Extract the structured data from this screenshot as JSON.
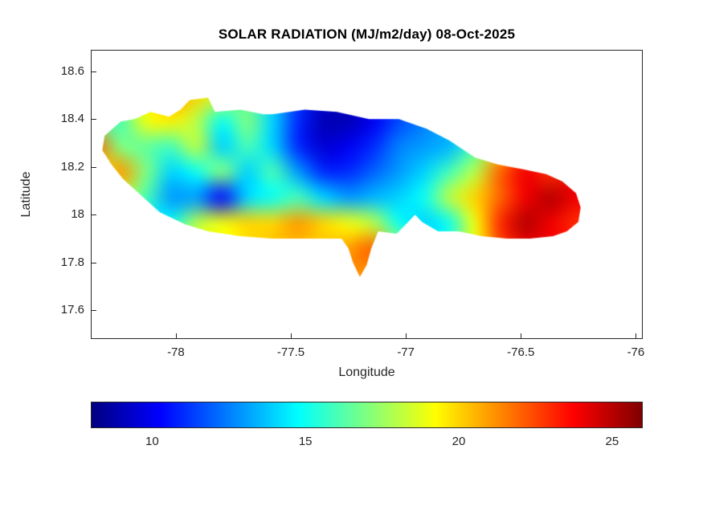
{
  "chart_data": {
    "type": "heatmap",
    "title": "SOLAR RADIATION (MJ/m2/day) 08-Oct-2025",
    "xlabel": "Longitude",
    "ylabel": "Latitude",
    "units": "MJ/m2/day",
    "date": "08-Oct-2025",
    "colormap": "jet",
    "grid_on": false,
    "xlim": [
      -78.37,
      -75.97
    ],
    "ylim": [
      17.48,
      18.69
    ],
    "x_ticks": [
      {
        "v": -78,
        "label": "-78"
      },
      {
        "v": -77.5,
        "label": "-77.5"
      },
      {
        "v": -77,
        "label": "-77"
      },
      {
        "v": -76.5,
        "label": "-76.5"
      },
      {
        "v": -76,
        "label": "-76"
      }
    ],
    "y_ticks": [
      {
        "v": 17.6,
        "label": "17.6"
      },
      {
        "v": 17.8,
        "label": "17.8"
      },
      {
        "v": 18,
        "label": "18"
      },
      {
        "v": 18.2,
        "label": "18.2"
      },
      {
        "v": 18.4,
        "label": "18.4"
      },
      {
        "v": 18.6,
        "label": "18.6"
      }
    ],
    "colorbar": {
      "orientation": "horizontal",
      "vmin": 8,
      "vmax": 26,
      "ticks": [
        {
          "v": 10,
          "label": "10"
        },
        {
          "v": 15,
          "label": "15"
        },
        {
          "v": 20,
          "label": "20"
        },
        {
          "v": 25,
          "label": "25"
        }
      ]
    },
    "grid": {
      "lon_centers": [
        -78.35,
        -78.24,
        -78.13,
        -78.02,
        -77.91,
        -77.8,
        -77.69,
        -77.58,
        -77.47,
        -77.36,
        -77.25,
        -77.14,
        -77.03,
        -76.92,
        -76.81,
        -76.7,
        -76.59,
        -76.48,
        -76.37,
        -76.26
      ],
      "lat_centers": [
        18.5,
        18.39,
        18.28,
        18.17,
        18.06,
        17.95,
        17.85,
        17.75
      ],
      "values": [
        [
          null,
          null,
          null,
          21,
          20,
          18.5,
          null,
          null,
          null,
          null,
          null,
          null,
          null,
          null,
          null,
          null,
          null,
          null,
          null,
          null
        ],
        [
          17,
          16,
          19,
          19.5,
          18,
          15,
          17,
          14,
          11,
          9,
          9,
          10,
          11.5,
          12.5,
          13.5,
          null,
          null,
          null,
          null,
          null
        ],
        [
          22,
          17,
          16.5,
          16,
          18,
          14,
          16,
          14,
          11,
          9.5,
          10,
          11,
          12.5,
          13,
          13.5,
          16,
          null,
          null,
          null,
          null
        ],
        [
          19,
          21,
          17,
          14,
          15,
          17,
          14,
          16,
          13,
          11,
          11,
          12,
          13,
          14,
          16,
          18,
          22,
          24,
          23,
          null
        ],
        [
          null,
          null,
          16,
          13,
          13,
          10.5,
          14,
          15,
          16,
          14,
          13,
          13.5,
          14,
          15,
          18,
          20,
          22,
          24,
          25,
          24
        ],
        [
          null,
          null,
          null,
          null,
          18,
          19,
          20,
          20,
          21,
          20,
          19,
          18,
          15,
          14,
          15,
          19,
          23,
          25,
          24,
          23
        ],
        [
          null,
          null,
          null,
          null,
          null,
          null,
          null,
          null,
          null,
          null,
          21,
          22,
          null,
          null,
          null,
          null,
          null,
          null,
          null,
          null
        ],
        [
          null,
          null,
          null,
          null,
          null,
          null,
          null,
          null,
          null,
          null,
          null,
          21,
          null,
          null,
          null,
          null,
          null,
          null,
          null,
          null
        ]
      ]
    },
    "coastline_outline_lonlat": [
      [
        -78.32,
        18.27
      ],
      [
        -78.31,
        18.33
      ],
      [
        -78.24,
        18.39
      ],
      [
        -78.18,
        18.4
      ],
      [
        -78.11,
        18.43
      ],
      [
        -78.03,
        18.41
      ],
      [
        -77.98,
        18.44
      ],
      [
        -77.94,
        18.48
      ],
      [
        -77.86,
        18.49
      ],
      [
        -77.83,
        18.43
      ],
      [
        -77.72,
        18.44
      ],
      [
        -77.62,
        18.42
      ],
      [
        -77.58,
        18.42
      ],
      [
        -77.44,
        18.44
      ],
      [
        -77.3,
        18.43
      ],
      [
        -77.16,
        18.4
      ],
      [
        -77.03,
        18.4
      ],
      [
        -76.91,
        18.36
      ],
      [
        -76.81,
        18.31
      ],
      [
        -76.7,
        18.24
      ],
      [
        -76.6,
        18.21
      ],
      [
        -76.49,
        18.19
      ],
      [
        -76.39,
        18.17
      ],
      [
        -76.32,
        18.14
      ],
      [
        -76.26,
        18.09
      ],
      [
        -76.24,
        18.03
      ],
      [
        -76.25,
        17.97
      ],
      [
        -76.3,
        17.93
      ],
      [
        -76.36,
        17.91
      ],
      [
        -76.46,
        17.9
      ],
      [
        -76.56,
        17.9
      ],
      [
        -76.67,
        17.91
      ],
      [
        -76.77,
        17.93
      ],
      [
        -76.86,
        17.93
      ],
      [
        -76.93,
        17.97
      ],
      [
        -76.96,
        18.0
      ],
      [
        -77.0,
        17.96
      ],
      [
        -77.04,
        17.92
      ],
      [
        -77.12,
        17.93
      ],
      [
        -77.15,
        17.86
      ],
      [
        -77.17,
        17.79
      ],
      [
        -77.2,
        17.74
      ],
      [
        -77.23,
        17.8
      ],
      [
        -77.25,
        17.86
      ],
      [
        -77.28,
        17.9
      ],
      [
        -77.33,
        17.9
      ],
      [
        -77.44,
        17.9
      ],
      [
        -77.58,
        17.9
      ],
      [
        -77.72,
        17.91
      ],
      [
        -77.86,
        17.93
      ],
      [
        -77.96,
        17.96
      ],
      [
        -78.07,
        18.01
      ],
      [
        -78.15,
        18.08
      ],
      [
        -78.23,
        18.15
      ],
      [
        -78.28,
        18.21
      ]
    ]
  }
}
